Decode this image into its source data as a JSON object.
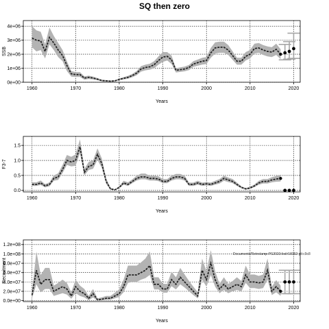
{
  "title": "SQ then zero",
  "watermark": "Documents/Retro/amp-PS2023-list/r18362 git:c9c8",
  "colors": {
    "band": "#b3b3b3",
    "line": "#222222",
    "points": "#000000",
    "ci": "#a6a6a6"
  },
  "chart_data": [
    {
      "type": "line",
      "xlabel": "Years",
      "ylabel": "SSB",
      "xlim": [
        1958,
        2021.5
      ],
      "ylim": [
        0,
        4400000
      ],
      "xticks": [
        1960,
        1970,
        1980,
        1990,
        2000,
        2010,
        2020
      ],
      "yticks": [
        0,
        1000000,
        2000000,
        3000000,
        4000000
      ],
      "ytick_labels": [
        "0e+00",
        "1e+06",
        "2e+06",
        "3e+06",
        "4e+06"
      ],
      "grid": true,
      "x": [
        1960,
        1961,
        1962,
        1963,
        1964,
        1965,
        1966,
        1967,
        1968,
        1969,
        1970,
        1971,
        1972,
        1973,
        1974,
        1975,
        1976,
        1977,
        1978,
        1979,
        1980,
        1981,
        1982,
        1983,
        1984,
        1985,
        1986,
        1987,
        1988,
        1989,
        1990,
        1991,
        1992,
        1993,
        1994,
        1995,
        1996,
        1997,
        1998,
        1999,
        2000,
        2001,
        2002,
        2003,
        2004,
        2005,
        2006,
        2007,
        2008,
        2009,
        2010,
        2011,
        2012,
        2013,
        2014,
        2015,
        2016,
        2017
      ],
      "series": [
        {
          "values": [
            3150000,
            3000000,
            2950000,
            2200000,
            3200000,
            2800000,
            2300000,
            1900000,
            1200000,
            600000,
            550000,
            550000,
            300000,
            350000,
            300000,
            220000,
            120000,
            100000,
            80000,
            100000,
            200000,
            280000,
            350000,
            480000,
            650000,
            950000,
            1050000,
            1100000,
            1250000,
            1550000,
            1800000,
            1850000,
            1600000,
            850000,
            900000,
            950000,
            1050000,
            1300000,
            1400000,
            1500000,
            1550000,
            2100000,
            2450000,
            2500000,
            2500000,
            2300000,
            1900000,
            1500000,
            1500000,
            1850000,
            2000000,
            2400000,
            2450000,
            2300000,
            2200000,
            2150000,
            2350000,
            2000000
          ],
          "lower": [
            2500000,
            2200000,
            2300000,
            1700000,
            2700000,
            2300000,
            1800000,
            1500000,
            800000,
            400000,
            380000,
            380000,
            180000,
            230000,
            200000,
            140000,
            60000,
            50000,
            40000,
            60000,
            140000,
            200000,
            250000,
            360000,
            500000,
            760000,
            850000,
            900000,
            1000000,
            1250000,
            1450000,
            1550000,
            1300000,
            700000,
            740000,
            780000,
            870000,
            1100000,
            1180000,
            1260000,
            1300000,
            1750000,
            2050000,
            2100000,
            2100000,
            1950000,
            1600000,
            1250000,
            1250000,
            1550000,
            1700000,
            2050000,
            2100000,
            1950000,
            1850000,
            1800000,
            1950000,
            1650000
          ],
          "upper": [
            4000000,
            3700000,
            3600000,
            2700000,
            3900000,
            3300000,
            2800000,
            2300000,
            1500000,
            800000,
            720000,
            720000,
            420000,
            470000,
            400000,
            300000,
            180000,
            150000,
            120000,
            140000,
            270000,
            360000,
            460000,
            600000,
            800000,
            1150000,
            1250000,
            1320000,
            1500000,
            1850000,
            2150000,
            2150000,
            1900000,
            1000000,
            1060000,
            1120000,
            1230000,
            1500000,
            1620000,
            1740000,
            1800000,
            2450000,
            2850000,
            2900000,
            2900000,
            2650000,
            2200000,
            1750000,
            1750000,
            2150000,
            2300000,
            2750000,
            2800000,
            2650000,
            2550000,
            2500000,
            2750000,
            2350000
          ]
        }
      ],
      "projection": {
        "x": [
          2018,
          2019,
          2020
        ],
        "values": [
          2100000,
          2200000,
          2400000
        ],
        "lower": [
          1600000,
          1650000,
          1700000
        ],
        "upper": [
          2700000,
          2900000,
          3500000
        ]
      }
    },
    {
      "type": "line",
      "xlabel": "Years",
      "ylabel": "F3-7",
      "xlim": [
        1958,
        2021.5
      ],
      "ylim": [
        -0.05,
        1.8
      ],
      "xticks": [
        1960,
        1970,
        1980,
        1990,
        2000,
        2010,
        2020
      ],
      "yticks": [
        0,
        0.5,
        1,
        1.5
      ],
      "ytick_labels": [
        "0.0",
        "0.5",
        "1.0",
        "1.5"
      ],
      "grid": true,
      "x": [
        1960,
        1961,
        1962,
        1963,
        1964,
        1965,
        1966,
        1967,
        1968,
        1969,
        1970,
        1971,
        1972,
        1973,
        1974,
        1975,
        1976,
        1977,
        1978,
        1979,
        1980,
        1981,
        1982,
        1983,
        1984,
        1985,
        1986,
        1987,
        1988,
        1989,
        1990,
        1991,
        1992,
        1993,
        1994,
        1995,
        1996,
        1997,
        1998,
        1999,
        2000,
        2001,
        2002,
        2003,
        2004,
        2005,
        2006,
        2007,
        2008,
        2009,
        2010,
        2011,
        2012,
        2013,
        2014,
        2015,
        2016,
        2017
      ],
      "series": [
        {
          "values": [
            0.2,
            0.2,
            0.25,
            0.15,
            0.2,
            0.4,
            0.45,
            0.7,
            1.0,
            0.95,
            1.0,
            1.45,
            0.6,
            0.8,
            0.85,
            1.2,
            0.9,
            0.3,
            0.05,
            0.02,
            0.1,
            0.25,
            0.2,
            0.3,
            0.4,
            0.45,
            0.45,
            0.4,
            0.4,
            0.38,
            0.3,
            0.3,
            0.4,
            0.45,
            0.45,
            0.4,
            0.2,
            0.2,
            0.25,
            0.2,
            0.22,
            0.2,
            0.25,
            0.3,
            0.4,
            0.35,
            0.3,
            0.2,
            0.1,
            0.05,
            0.08,
            0.15,
            0.25,
            0.3,
            0.3,
            0.35,
            0.38,
            0.4
          ],
          "lower": [
            0.15,
            0.15,
            0.18,
            0.1,
            0.14,
            0.32,
            0.35,
            0.58,
            0.85,
            0.8,
            0.82,
            1.25,
            0.5,
            0.68,
            0.72,
            1.02,
            0.75,
            0.22,
            0.02,
            0.01,
            0.07,
            0.19,
            0.15,
            0.24,
            0.33,
            0.37,
            0.37,
            0.33,
            0.33,
            0.31,
            0.24,
            0.24,
            0.33,
            0.37,
            0.37,
            0.33,
            0.15,
            0.15,
            0.19,
            0.15,
            0.17,
            0.15,
            0.19,
            0.23,
            0.32,
            0.28,
            0.24,
            0.15,
            0.07,
            0.03,
            0.05,
            0.11,
            0.19,
            0.23,
            0.23,
            0.27,
            0.29,
            0.3
          ],
          "upper": [
            0.27,
            0.27,
            0.33,
            0.21,
            0.27,
            0.5,
            0.57,
            0.85,
            1.18,
            1.12,
            1.2,
            1.7,
            0.72,
            0.95,
            1.0,
            1.4,
            1.07,
            0.4,
            0.09,
            0.04,
            0.14,
            0.32,
            0.27,
            0.37,
            0.49,
            0.56,
            0.56,
            0.49,
            0.49,
            0.47,
            0.38,
            0.38,
            0.49,
            0.55,
            0.55,
            0.49,
            0.26,
            0.26,
            0.32,
            0.26,
            0.28,
            0.26,
            0.32,
            0.38,
            0.49,
            0.43,
            0.38,
            0.26,
            0.14,
            0.08,
            0.12,
            0.2,
            0.32,
            0.38,
            0.38,
            0.44,
            0.48,
            0.52
          ]
        }
      ],
      "projection": {
        "x": [
          2018,
          2019,
          2020
        ],
        "values": [
          0,
          0,
          0
        ],
        "lower": [
          0,
          0,
          0
        ],
        "upper": [
          0,
          0,
          0
        ]
      }
    },
    {
      "type": "line",
      "xlabel": "Years",
      "ylabel": "Recruitment",
      "xlim": [
        1958,
        2021.5
      ],
      "ylim": [
        -2000000,
        130000000
      ],
      "xticks": [
        1960,
        1970,
        1980,
        1990,
        2000,
        2010,
        2020
      ],
      "yticks": [
        0,
        20000000,
        40000000,
        60000000,
        80000000,
        100000000,
        120000000
      ],
      "ytick_labels": [
        "0.0e+00",
        "2.0e+07",
        "4.0e+07",
        "6.0e+07",
        "8.0e+07",
        "1.0e+08",
        "1.2e+08"
      ],
      "grid": true,
      "x": [
        1960,
        1961,
        1962,
        1963,
        1964,
        1965,
        1966,
        1967,
        1968,
        1969,
        1970,
        1971,
        1972,
        1973,
        1974,
        1975,
        1976,
        1977,
        1978,
        1979,
        1980,
        1981,
        1982,
        1983,
        1984,
        1985,
        1986,
        1987,
        1988,
        1989,
        1990,
        1991,
        1992,
        1993,
        1994,
        1995,
        1996,
        1997,
        1998,
        1999,
        2000,
        2001,
        2002,
        2003,
        2004,
        2005,
        2006,
        2007,
        2008,
        2009,
        2010,
        2011,
        2012,
        2013,
        2014,
        2015,
        2016,
        2017
      ],
      "series": [
        {
          "values": [
            12000000,
            65000000,
            35000000,
            45000000,
            45000000,
            20000000,
            25000000,
            30000000,
            25000000,
            10000000,
            30000000,
            20000000,
            15000000,
            5000000,
            15000000,
            2000000,
            3000000,
            5000000,
            5000000,
            10000000,
            15000000,
            30000000,
            55000000,
            55000000,
            55000000,
            60000000,
            65000000,
            75000000,
            35000000,
            35000000,
            25000000,
            25000000,
            45000000,
            35000000,
            50000000,
            40000000,
            30000000,
            20000000,
            10000000,
            65000000,
            45000000,
            80000000,
            45000000,
            25000000,
            35000000,
            25000000,
            30000000,
            35000000,
            30000000,
            55000000,
            40000000,
            40000000,
            38000000,
            40000000,
            65000000,
            20000000,
            30000000,
            20000000
          ],
          "lower": [
            5000000,
            35000000,
            18000000,
            25000000,
            25000000,
            10000000,
            13000000,
            16000000,
            13000000,
            4000000,
            16000000,
            10000000,
            7000000,
            1000000,
            7000000,
            0,
            1000000,
            2000000,
            2000000,
            5000000,
            8000000,
            18000000,
            38000000,
            40000000,
            40000000,
            45000000,
            48000000,
            55000000,
            24000000,
            24000000,
            17000000,
            17000000,
            31000000,
            24000000,
            35000000,
            28000000,
            20000000,
            12000000,
            5000000,
            45000000,
            30000000,
            55000000,
            30000000,
            16000000,
            23000000,
            16000000,
            20000000,
            23000000,
            20000000,
            38000000,
            27000000,
            27000000,
            25000000,
            27000000,
            45000000,
            12000000,
            18000000,
            10000000
          ],
          "upper": [
            20000000,
            105000000,
            55000000,
            70000000,
            70000000,
            32000000,
            38000000,
            45000000,
            38000000,
            18000000,
            45000000,
            32000000,
            25000000,
            10000000,
            25000000,
            5000000,
            7000000,
            10000000,
            10000000,
            17000000,
            24000000,
            45000000,
            75000000,
            75000000,
            75000000,
            82000000,
            90000000,
            105000000,
            50000000,
            50000000,
            36000000,
            36000000,
            62000000,
            50000000,
            70000000,
            56000000,
            42000000,
            30000000,
            18000000,
            90000000,
            63000000,
            108000000,
            63000000,
            36000000,
            50000000,
            36000000,
            42000000,
            50000000,
            42000000,
            75000000,
            56000000,
            56000000,
            53000000,
            56000000,
            90000000,
            30000000,
            44000000,
            32000000
          ]
        }
      ],
      "projection": {
        "x": [
          2018,
          2019,
          2020
        ],
        "values": [
          40000000,
          40000000,
          40000000
        ],
        "lower": [
          15000000,
          15000000,
          15000000
        ],
        "upper": [
          65000000,
          65000000,
          65000000
        ]
      }
    }
  ]
}
